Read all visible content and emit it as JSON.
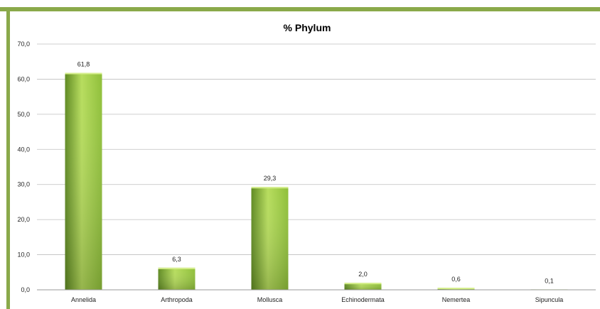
{
  "frame_color": "#8aa94a",
  "bar_color_light": "#b7dd5e",
  "bar_color_mid": "#8fbf3a",
  "bar_color_dark": "#5f8a22",
  "chart_data": {
    "type": "bar",
    "title": "% Phylum",
    "xlabel": "",
    "ylabel": "",
    "categories": [
      "Annelida",
      "Arthropoda",
      "Mollusca",
      "Echinodermata",
      "Nemertea",
      "Sipuncula"
    ],
    "values": [
      61.8,
      6.3,
      29.3,
      2.0,
      0.6,
      0.1
    ],
    "data_labels": [
      "61,8",
      "6,3",
      "29,3",
      "2,0",
      "0,6",
      "0,1"
    ],
    "ylim": [
      0,
      70
    ],
    "yticks": [
      0,
      10,
      20,
      30,
      40,
      50,
      60,
      70
    ],
    "ytick_labels": [
      "0,0",
      "10,0",
      "20,0",
      "30,0",
      "40,0",
      "50,0",
      "60,0",
      "70,0"
    ],
    "grid": true,
    "legend": "none"
  }
}
